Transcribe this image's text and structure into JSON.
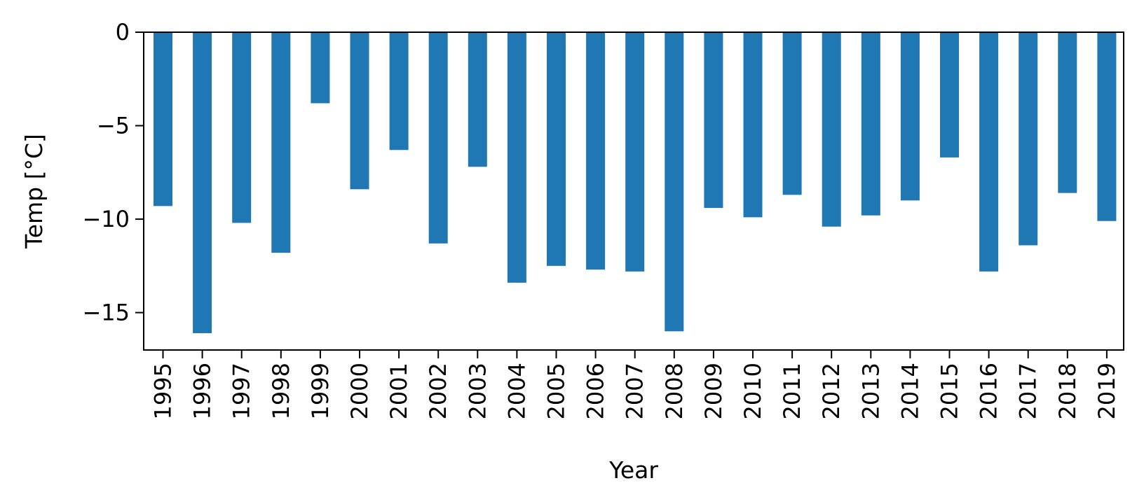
{
  "chart_data": {
    "type": "bar",
    "categories": [
      "1995",
      "1996",
      "1997",
      "1998",
      "1999",
      "2000",
      "2001",
      "2002",
      "2003",
      "2004",
      "2005",
      "2006",
      "2007",
      "2008",
      "2009",
      "2010",
      "2011",
      "2012",
      "2013",
      "2014",
      "2015",
      "2016",
      "2017",
      "2018",
      "2019"
    ],
    "series": [
      {
        "values": [
          -9.3,
          -16.1,
          -10.2,
          -11.8,
          -3.8,
          -8.4,
          -6.3,
          -11.3,
          -7.2,
          -13.4,
          -12.5,
          -12.7,
          -12.8,
          -16.0,
          -9.4,
          -9.9,
          -8.7,
          -10.4,
          -9.8,
          -9.0,
          -6.7,
          -12.8,
          -11.4,
          -8.6,
          -10.1
        ]
      }
    ],
    "title": "",
    "xlabel": "Year",
    "ylabel": "Temp [°C]",
    "ylim": [
      -17,
      0
    ],
    "yticks": [
      0,
      -5,
      -10,
      -15
    ],
    "ytick_labels": [
      "0",
      "−5",
      "−10",
      "−15"
    ],
    "grid": false,
    "legend": "none",
    "colors": {
      "bar": "#1f77b4",
      "axis": "#000000"
    }
  }
}
